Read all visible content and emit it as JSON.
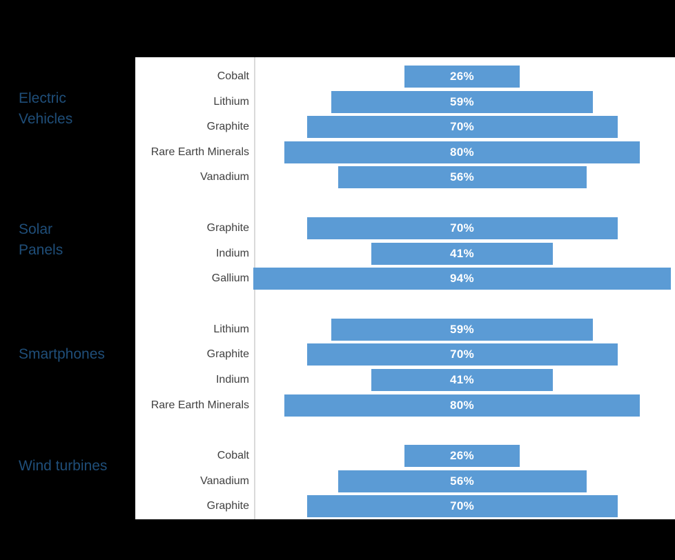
{
  "chart_data": {
    "type": "bar",
    "variant": "centered-horizontal-funnel",
    "orientation": "horizontal",
    "value_unit": "percent",
    "title": "",
    "xlabel": "",
    "ylabel": "",
    "grid": false,
    "legend": false,
    "axis_baseline_visible": true,
    "value_labels_position": "inside-center",
    "value_range": [
      0,
      100
    ],
    "colors": {
      "bar": "#5b9bd5",
      "value_text": "#ffffff",
      "category_text": "#404040",
      "group_text": "#1f4e79",
      "axis_line": "#d9d9d9",
      "panel_bg": "#ffffff",
      "canvas_bg": "#000000"
    },
    "groups": [
      {
        "label": "Electric Vehicles",
        "label_lines": [
          "Electric",
          "Vehicles"
        ],
        "items": [
          {
            "mineral": "Cobalt",
            "value": 26,
            "display": "26%"
          },
          {
            "mineral": "Lithium",
            "value": 59,
            "display": "59%"
          },
          {
            "mineral": "Graphite",
            "value": 70,
            "display": "70%"
          },
          {
            "mineral": "Rare Earth Minerals",
            "value": 80,
            "display": "80%"
          },
          {
            "mineral": "Vanadium",
            "value": 56,
            "display": "56%"
          }
        ]
      },
      {
        "label": "Solar Panels",
        "label_lines": [
          "Solar",
          "Panels"
        ],
        "items": [
          {
            "mineral": "Graphite",
            "value": 70,
            "display": "70%"
          },
          {
            "mineral": "Indium",
            "value": 41,
            "display": "41%"
          },
          {
            "mineral": "Gallium",
            "value": 94,
            "display": "94%"
          }
        ]
      },
      {
        "label": "Smartphones",
        "label_lines": [
          "Smartphones"
        ],
        "items": [
          {
            "mineral": "Lithium",
            "value": 59,
            "display": "59%"
          },
          {
            "mineral": "Graphite",
            "value": 70,
            "display": "70%"
          },
          {
            "mineral": "Indium",
            "value": 41,
            "display": "41%"
          },
          {
            "mineral": "Rare Earth Minerals",
            "value": 80,
            "display": "80%"
          }
        ]
      },
      {
        "label": "Wind turbines",
        "label_lines": [
          "Wind turbines"
        ],
        "items": [
          {
            "mineral": "Cobalt",
            "value": 26,
            "display": "26%"
          },
          {
            "mineral": "Vanadium",
            "value": 56,
            "display": "56%"
          },
          {
            "mineral": "Graphite",
            "value": 70,
            "display": "70%"
          }
        ]
      }
    ]
  }
}
